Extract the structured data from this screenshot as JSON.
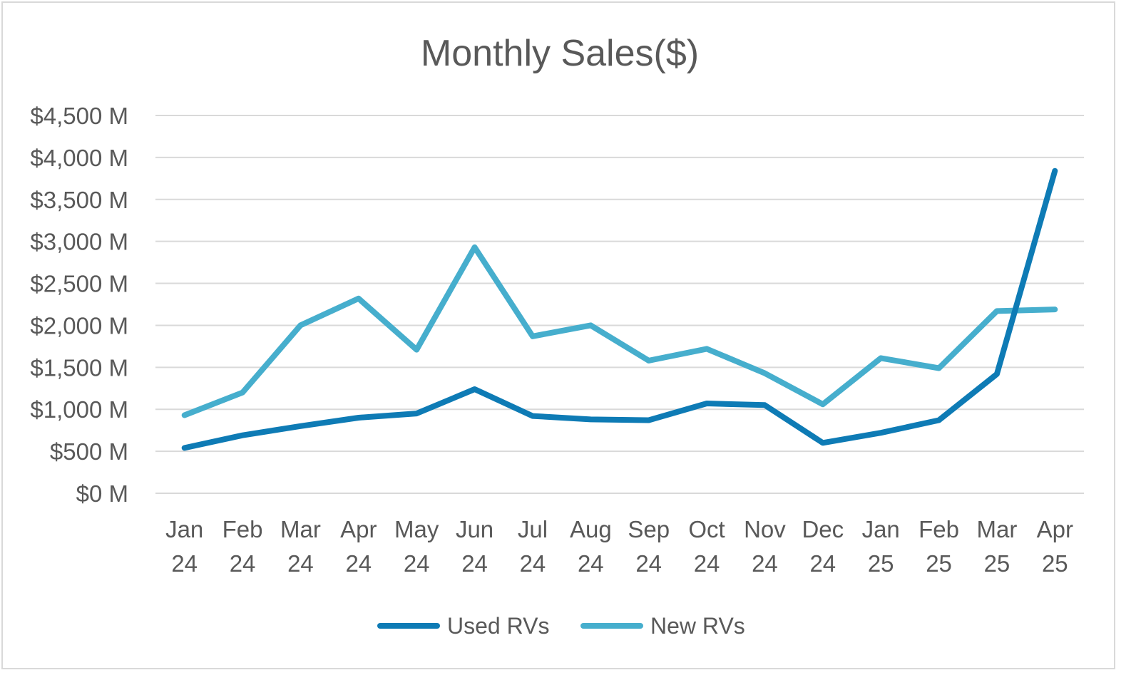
{
  "chart_data": {
    "type": "line",
    "title": "Monthly Sales($)",
    "xlabel": "",
    "ylabel": "",
    "categories": [
      [
        "Jan",
        "24"
      ],
      [
        "Feb",
        "24"
      ],
      [
        "Mar",
        "24"
      ],
      [
        "Apr",
        "24"
      ],
      [
        "May",
        "24"
      ],
      [
        "Jun",
        "24"
      ],
      [
        "Jul",
        "24"
      ],
      [
        "Aug",
        "24"
      ],
      [
        "Sep",
        "24"
      ],
      [
        "Oct",
        "24"
      ],
      [
        "Nov",
        "24"
      ],
      [
        "Dec",
        "24"
      ],
      [
        "Jan",
        "25"
      ],
      [
        "Feb",
        "25"
      ],
      [
        "Mar",
        "25"
      ],
      [
        "Apr",
        "25"
      ]
    ],
    "y_ticks": [
      "$0 M",
      "$500 M",
      "$1,000 M",
      "$1,500 M",
      "$2,000 M",
      "$2,500 M",
      "$3,000 M",
      "$3,500 M",
      "$4,000 M",
      "$4,500 M"
    ],
    "ylim": [
      0,
      4500
    ],
    "grid": true,
    "legend_position": "bottom",
    "series": [
      {
        "name": "Used RVs",
        "color": "#0e7bb5",
        "values": [
          540,
          690,
          800,
          900,
          950,
          1240,
          920,
          880,
          870,
          1070,
          1050,
          600,
          720,
          870,
          1420,
          3840
        ]
      },
      {
        "name": "New RVs",
        "color": "#46aecd",
        "values": [
          930,
          1200,
          2000,
          2320,
          1710,
          2930,
          1870,
          2000,
          1580,
          1720,
          1430,
          1060,
          1610,
          1490,
          2170,
          2190
        ]
      }
    ]
  }
}
